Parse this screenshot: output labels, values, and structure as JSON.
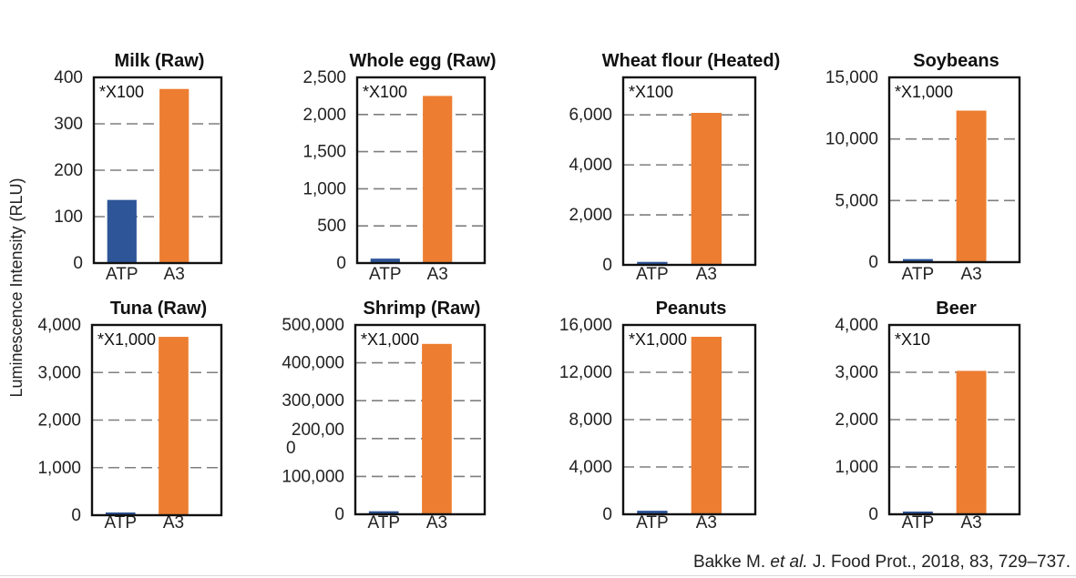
{
  "ylabel": "Luminescence Intensity (RLU)",
  "citation": {
    "prefix": "Bakke M. ",
    "italic": "et al.",
    "suffix": " J. Food Prot., 2018, 83, 729–737."
  },
  "colors": {
    "atp": "#2e5597",
    "a3": "#ed7d31"
  },
  "chart_data": [
    {
      "type": "bar",
      "title": "Milk (Raw)",
      "multiplier": "*X100",
      "categories": [
        "ATP",
        "A3"
      ],
      "values": [
        136,
        375
      ],
      "ylim": [
        0,
        400
      ],
      "ticks": [
        0,
        100,
        200,
        300,
        400
      ],
      "tick_labels": [
        "0",
        "100",
        "200",
        "300",
        "400"
      ],
      "grid": true
    },
    {
      "type": "bar",
      "title": "Whole egg  (Raw)",
      "multiplier": "*X100",
      "categories": [
        "ATP",
        "A3"
      ],
      "values": [
        60,
        2250
      ],
      "ylim": [
        0,
        2500
      ],
      "ticks": [
        0,
        500,
        1000,
        1500,
        2000,
        2500
      ],
      "tick_labels": [
        "0",
        "500",
        "1,000",
        "1,500",
        "2,000",
        "2,500"
      ],
      "grid": true
    },
    {
      "type": "bar",
      "title": "Wheat flour (Heated)",
      "multiplier": "*X100",
      "categories": [
        "ATP",
        "A3"
      ],
      "values": [
        120,
        6080
      ],
      "ylim": [
        0,
        7500
      ],
      "ticks": [
        0,
        2000,
        4000,
        6000
      ],
      "tick_labels": [
        "0",
        "2,000",
        "4,000",
        "6,000"
      ],
      "grid": true
    },
    {
      "type": "bar",
      "title": "Soybeans",
      "multiplier": "*X1,000",
      "categories": [
        "ATP",
        "A3"
      ],
      "values": [
        250,
        12300
      ],
      "ylim": [
        0,
        15000
      ],
      "ticks": [
        0,
        5000,
        10000,
        15000
      ],
      "tick_labels": [
        "0",
        "5,000",
        "10,000",
        "15,000"
      ],
      "grid": true
    },
    {
      "type": "bar",
      "title": "Tuna (Raw)",
      "multiplier": "*X1,000",
      "categories": [
        "ATP",
        "A3"
      ],
      "values": [
        50,
        3750
      ],
      "ylim": [
        0,
        4000
      ],
      "ticks": [
        0,
        1000,
        2000,
        3000,
        4000
      ],
      "tick_labels": [
        "0",
        "1,000",
        "2,000",
        "3,000",
        "4,000"
      ],
      "grid": true
    },
    {
      "type": "bar",
      "title": "Shrimp (Raw)",
      "multiplier": "*X1,000",
      "categories": [
        "ATP",
        "A3"
      ],
      "values": [
        8000,
        450000
      ],
      "ylim": [
        0,
        500000
      ],
      "ticks": [
        0,
        100000,
        200000,
        300000,
        400000,
        500000
      ],
      "tick_labels": [
        "0",
        "100,000",
        "200,00\n0",
        "300,000",
        "400,000",
        "500,000"
      ],
      "grid": true
    },
    {
      "type": "bar",
      "title": "Peanuts",
      "multiplier": "*X1,000",
      "categories": [
        "ATP",
        "A3"
      ],
      "values": [
        300,
        15000
      ],
      "ylim": [
        0,
        16000
      ],
      "ticks": [
        0,
        4000,
        8000,
        12000,
        16000
      ],
      "tick_labels": [
        "0",
        "4,000",
        "8,000",
        "12,000",
        "16,000"
      ],
      "grid": true
    },
    {
      "type": "bar",
      "title": "Beer",
      "multiplier": "*X10",
      "categories": [
        "ATP",
        "A3"
      ],
      "values": [
        50,
        3030
      ],
      "ylim": [
        0,
        4000
      ],
      "ticks": [
        0,
        1000,
        2000,
        3000,
        4000
      ],
      "tick_labels": [
        "0",
        "1,000",
        "2,000",
        "3,000",
        "4,000"
      ],
      "grid": true
    }
  ]
}
